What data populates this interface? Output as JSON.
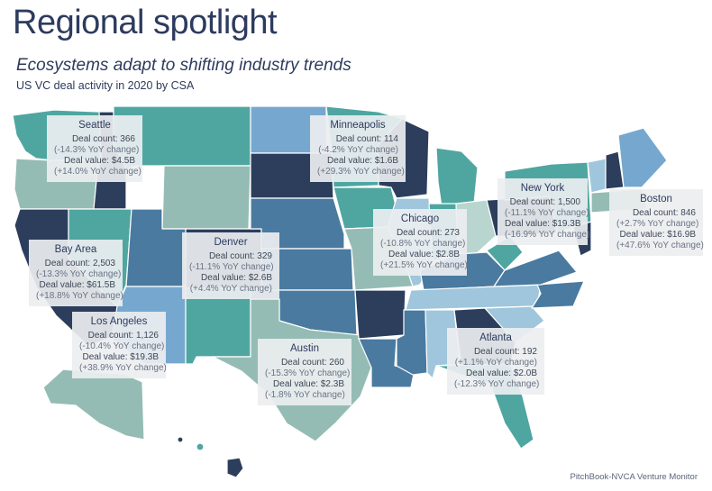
{
  "header": {
    "title": "Regional spotlight",
    "subtitle": "Ecosystems adapt to shifting industry trends",
    "caption": "US VC deal activity in 2020 by CSA"
  },
  "source": "PitchBook-NVCA Venture Monitor",
  "colors": {
    "navy": "#2c3e5c",
    "steel": "#4a7a9f",
    "sky": "#76a8cf",
    "teal": "#4fa6a0",
    "seafoam": "#94bcb4",
    "grayblue": "#9fc6dc",
    "paleteal": "#b9d5d0"
  },
  "regions": [
    {
      "city": "Seattle",
      "deal_count": "Deal count: 366",
      "count_change": "(-14.3% YoY change)",
      "deal_value": "Deal value: $4.5B",
      "value_change": "(+14.0% YoY change)"
    },
    {
      "city": "Minneapolis",
      "deal_count": "Deal count: 114",
      "count_change": "(-4.2% YoY change)",
      "deal_value": "Deal value: $1.6B",
      "value_change": "(+29.3% YoY change)"
    },
    {
      "city": "New York",
      "deal_count": "Deal count: 1,500",
      "count_change": "(-11.1% YoY change)",
      "deal_value": "Deal value: $19.3B",
      "value_change": "(-16.9% YoY change)"
    },
    {
      "city": "Boston",
      "deal_count": "Deal count: 846",
      "count_change": "(+2.7% YoY change)",
      "deal_value": "Deal value: $16.9B",
      "value_change": "(+47.6% YoY change)"
    },
    {
      "city": "Chicago",
      "deal_count": "Deal count: 273",
      "count_change": "(-10.8% YoY change)",
      "deal_value": "Deal value: $2.8B",
      "value_change": "(+21.5% YoY change)"
    },
    {
      "city": "Denver",
      "deal_count": "Deal count: 329",
      "count_change": "(-11.1% YoY change)",
      "deal_value": "Deal value: $2.6B",
      "value_change": "(+4.4% YoY change)"
    },
    {
      "city": "Bay Area",
      "deal_count": "Deal count: 2,503",
      "count_change": "(-13.3% YoY change)",
      "deal_value": "Deal value: $61.5B",
      "value_change": "(+18.8% YoY change)"
    },
    {
      "city": "Los Angeles",
      "deal_count": "Deal count: 1,126",
      "count_change": "(-10.4% YoY change)",
      "deal_value": "Deal value: $19.3B",
      "value_change": "(+38.9% YoY change)"
    },
    {
      "city": "Austin",
      "deal_count": "Deal count: 260",
      "count_change": "(-15.3% YoY change)",
      "deal_value": "Deal value: $2.3B",
      "value_change": "(-1.8% YoY change)"
    },
    {
      "city": "Atlanta",
      "deal_count": "Deal count: 192",
      "count_change": "(+1.1% YoY change)",
      "deal_value": "Deal value: $2.0B",
      "value_change": "(-12.3% YoY change)"
    }
  ]
}
